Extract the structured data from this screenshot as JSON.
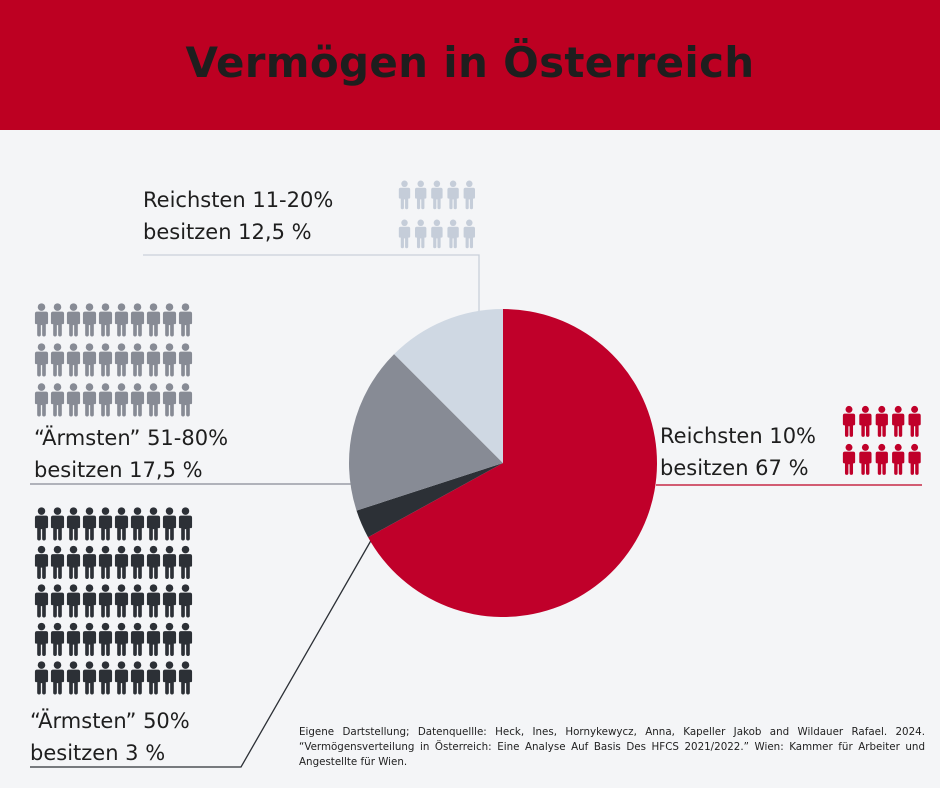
{
  "title": "Vermögen in Österreich",
  "colors": {
    "header": "#bd0022",
    "background": "#f4f5f7",
    "richest10": "#c0002a",
    "richest11_20": "#cfd8e3",
    "middle51_80": "#878b95",
    "poorest50": "#2c3036"
  },
  "icons": {
    "person": "person-icon"
  },
  "chart_data": {
    "type": "pie",
    "title": "Vermögen in Österreich",
    "unit": "%",
    "start_angle": "12 o'clock",
    "direction": "clockwise",
    "slices": [
      {
        "label": "Reichsten 10%",
        "value": 67,
        "color": "#c0002a"
      },
      {
        "label": "“Ärmsten” 50%",
        "value": 3,
        "color": "#2c3036"
      },
      {
        "label": "“Ärmsten” 51-80%",
        "value": 17.5,
        "color": "#878b95"
      },
      {
        "label": "Reichsten 11-20%",
        "value": 12.5,
        "color": "#cfd8e3"
      }
    ]
  },
  "labels": {
    "richest10": {
      "line1": "Reichsten 10%",
      "line2": "besitzen 67 %",
      "people_count": 10,
      "people_color": "#c0002a"
    },
    "richest11_20": {
      "line1": "Reichsten 11-20%",
      "line2": "besitzen 12,5 %",
      "people_count": 10,
      "people_color": "#c5cdd9"
    },
    "middle51_80": {
      "line1": "“Ärmsten” 51-80%",
      "line2": "besitzen 17,5 %",
      "people_count": 30,
      "people_color": "#878b95"
    },
    "poorest50": {
      "line1": "“Ärmsten” 50%",
      "line2": "besitzen 3 %",
      "people_count": 50,
      "people_color": "#2c3036"
    }
  },
  "source": "Eigene Dartstellung; Datenquellle: Heck, Ines, Hornykewycz, Anna, Kapeller Jakob and Wildauer Rafael. 2024. “Vermögensverteilung in Österreich: Eine Analyse Auf Basis Des HFCS 2021/2022.” Wien: Kammer für Arbeiter und Angestellte für Wien."
}
